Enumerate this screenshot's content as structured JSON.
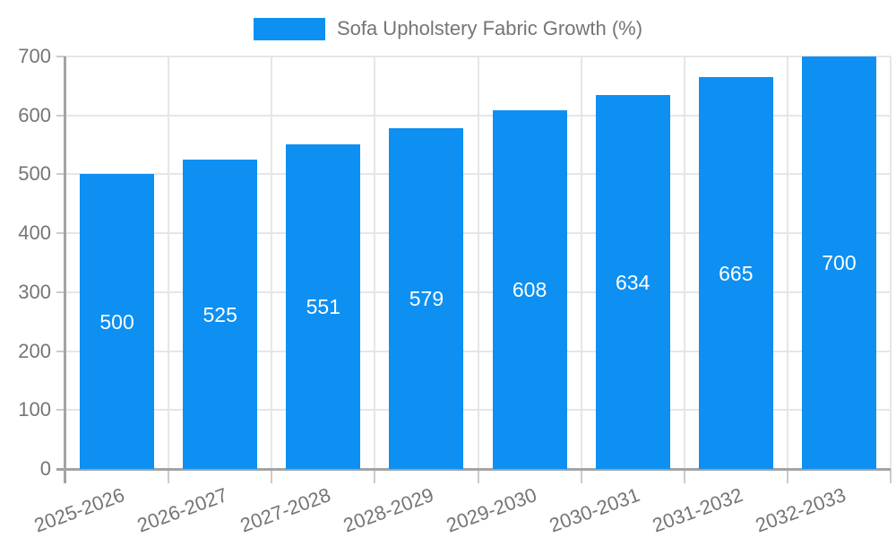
{
  "legend": {
    "series_label": "Sofa Upholstery Fabric Growth (%)"
  },
  "colors": {
    "bar": "#0d90f2",
    "bar_label": "#ffffff",
    "axis_line": "#a3a3a3",
    "grid_line": "#e6e6e6",
    "tick_mark": "#cbcbcb",
    "label_text": "#757575"
  },
  "chart_data": {
    "type": "bar",
    "title": "Sofa Upholstery Fabric Growth (%)",
    "categories": [
      "2025-2026",
      "2026-2027",
      "2027-2028",
      "2028-2029",
      "2029-2030",
      "2030-2031",
      "2031-2032",
      "2032-2033"
    ],
    "values": [
      500,
      525,
      551,
      579,
      608,
      634,
      665,
      700
    ],
    "xlabel": "",
    "ylabel": "",
    "ylim": [
      0,
      700
    ],
    "yticks": [
      0,
      100,
      200,
      300,
      400,
      500,
      600,
      700
    ],
    "grid": true,
    "legend_position": "top",
    "bar_value_labels": true,
    "x_tick_rotation_deg": -20
  }
}
